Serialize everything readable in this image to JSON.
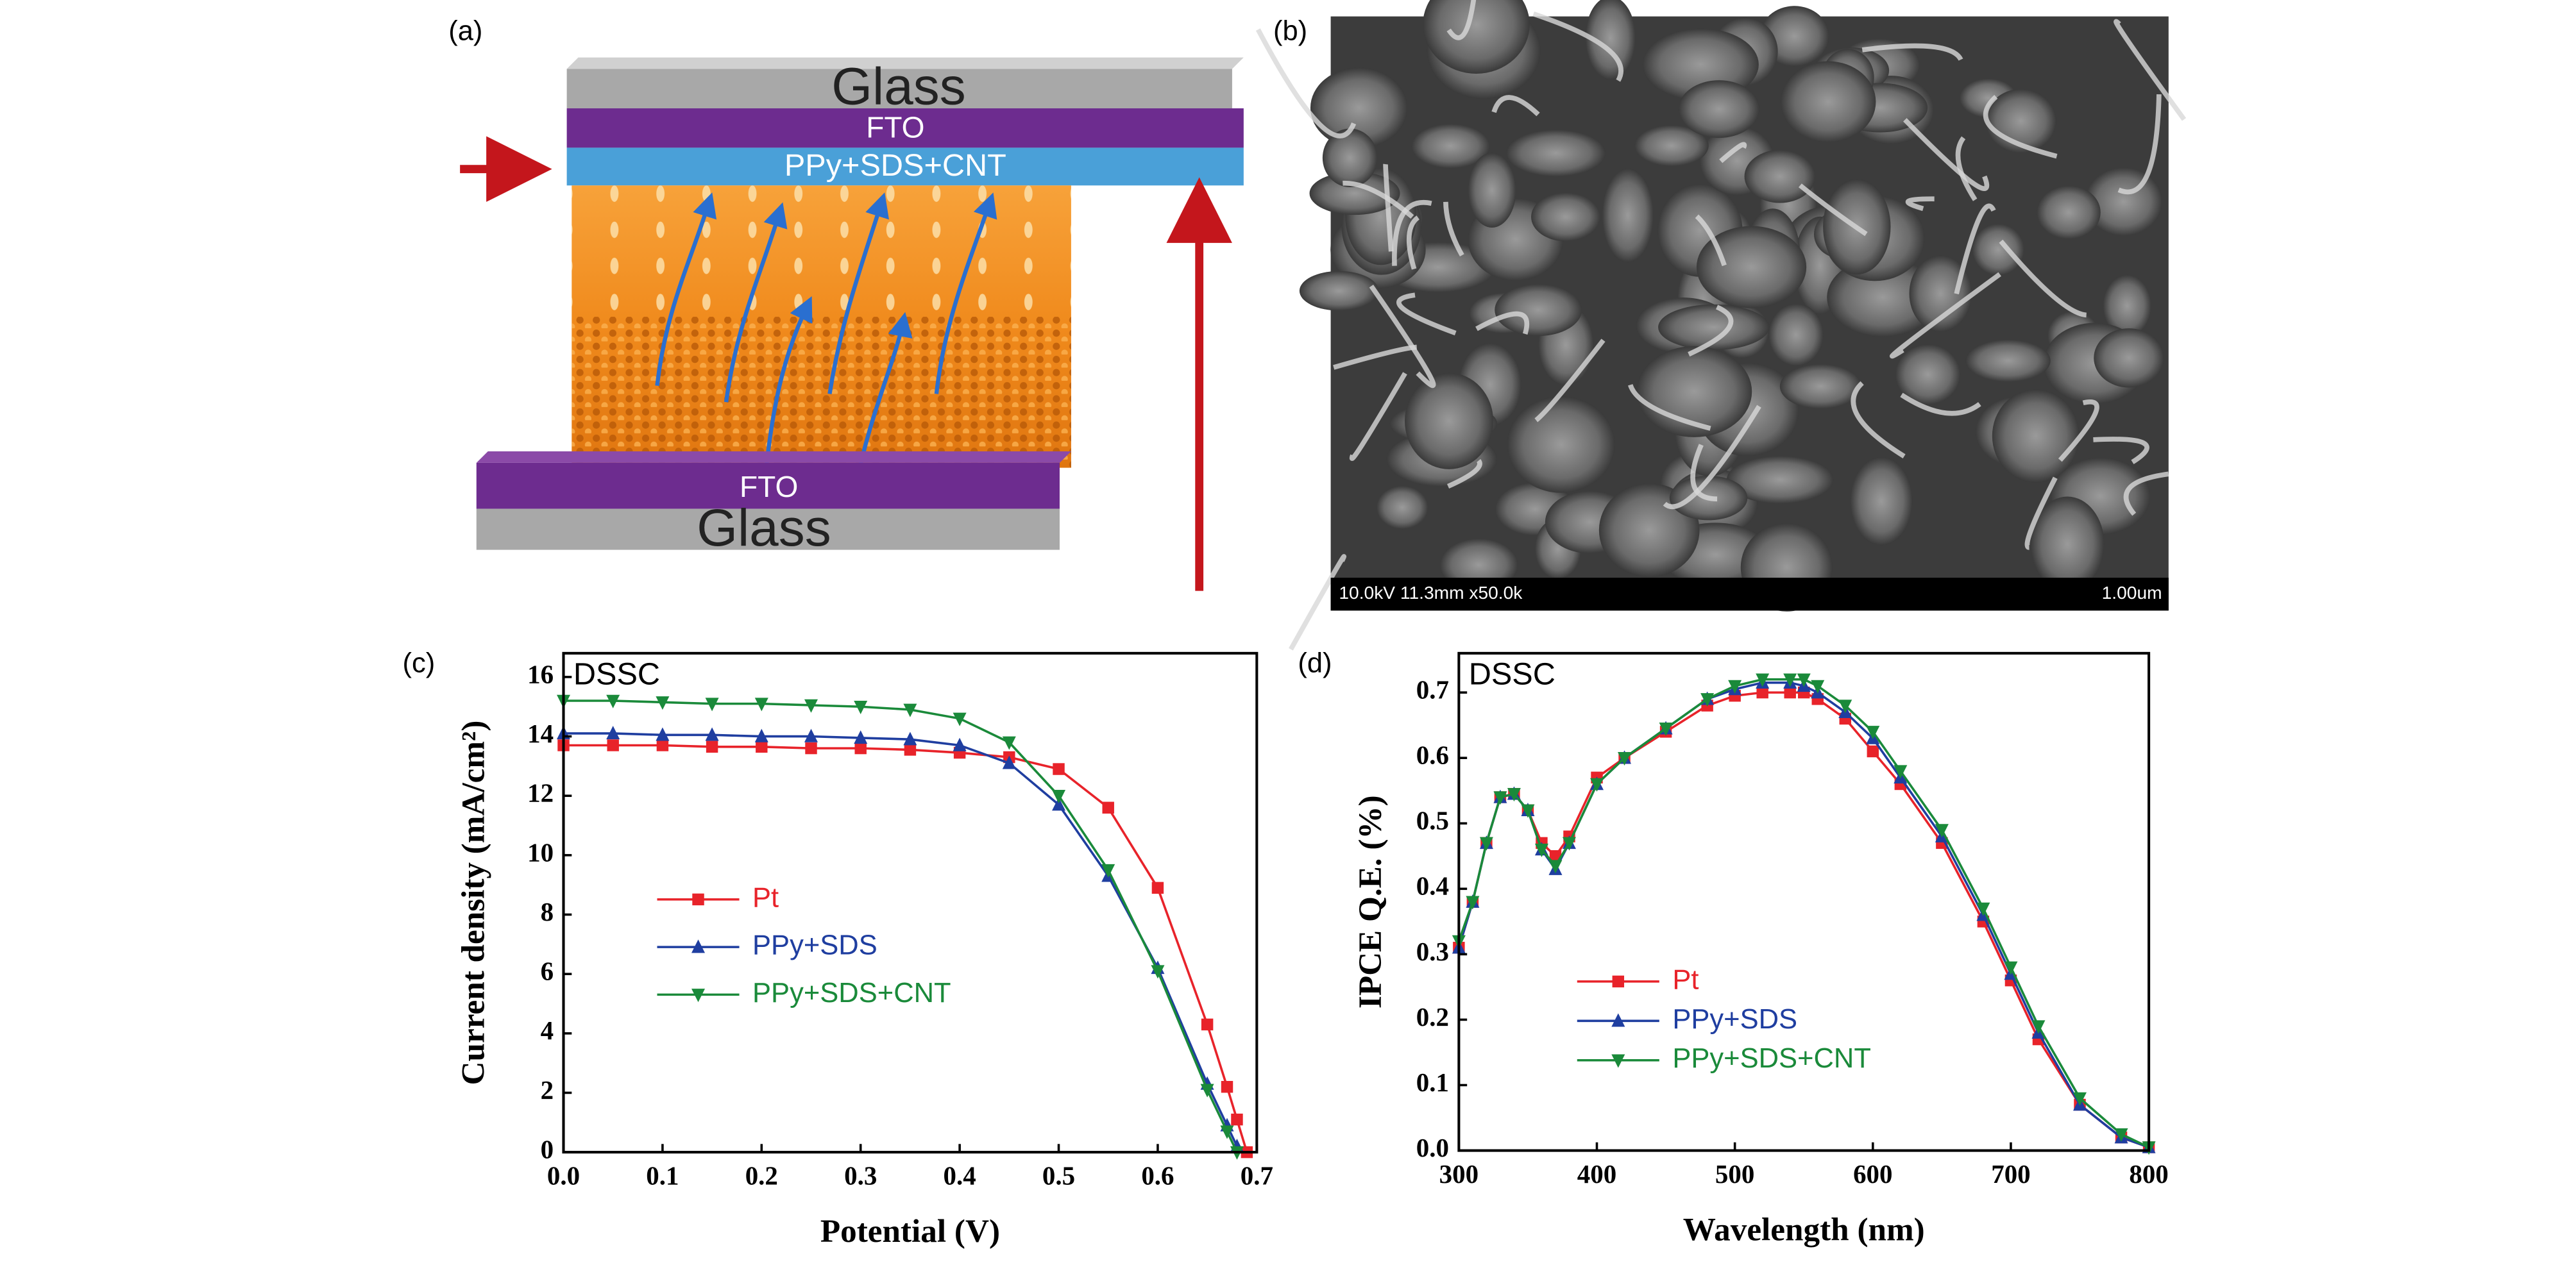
{
  "diagram": {
    "panel_label": "(a)",
    "top_glass": "Glass",
    "top_fto": "FTO",
    "counter_electrode": "PPy+SDS+CNT",
    "bottom_fto": "FTO",
    "bottom_glass": "Glass"
  },
  "micrograph": {
    "panel_label": "(b)",
    "caption": "10.0kV 11.3mm x50.0k",
    "scale_label": "1.00um"
  },
  "chart_data": [
    {
      "type": "line",
      "panel_label": "(c)",
      "annotation": "DSSC",
      "xlabel": "Potential (V)",
      "ylabel": "Current density (mA/cm²)",
      "x": [
        0,
        0.05,
        0.1,
        0.15,
        0.2,
        0.25,
        0.3,
        0.35,
        0.4,
        0.45,
        0.5,
        0.55,
        0.6,
        0.65,
        0.67,
        0.68,
        0.69
      ],
      "series": [
        {
          "name": "Pt",
          "color": "#e8232a",
          "marker": "square",
          "values": [
            13.7,
            13.7,
            13.7,
            13.65,
            13.65,
            13.6,
            13.6,
            13.55,
            13.45,
            13.3,
            12.9,
            11.6,
            8.9,
            4.3,
            2.2,
            1.1,
            0
          ]
        },
        {
          "name": "PPy+SDS",
          "color": "#1f3ea0",
          "marker": "triangle-up",
          "values": [
            14.1,
            14.1,
            14.05,
            14.05,
            14.0,
            14.0,
            13.95,
            13.9,
            13.7,
            13.1,
            11.7,
            9.3,
            6.2,
            2.3,
            0.9,
            0.2,
            null
          ]
        },
        {
          "name": "PPy+SDS+CNT",
          "color": "#1a8a3a",
          "marker": "triangle-down",
          "values": [
            15.2,
            15.2,
            15.15,
            15.1,
            15.1,
            15.05,
            15.0,
            14.9,
            14.6,
            13.8,
            12.0,
            9.5,
            6.1,
            2.1,
            0.7,
            0,
            null
          ]
        }
      ],
      "xlim": [
        0,
        0.7
      ],
      "xticks": [
        {
          "value": 0,
          "label": "0.0"
        },
        0.1,
        0.2,
        0.3,
        0.4,
        0.5,
        0.6,
        0.7
      ],
      "ylim": [
        0,
        16.8
      ],
      "yticks": [
        0,
        2,
        4,
        6,
        8,
        10,
        12,
        14,
        16
      ],
      "legend": "left",
      "grid": false
    },
    {
      "type": "line",
      "panel_label": "(d)",
      "annotation": "DSSC",
      "xlabel": "Wavelength (nm)",
      "ylabel": "IPCE Q.E. (%)",
      "x": [
        300,
        310,
        320,
        330,
        340,
        350,
        360,
        370,
        380,
        400,
        420,
        450,
        480,
        500,
        520,
        540,
        550,
        560,
        580,
        600,
        620,
        650,
        680,
        700,
        720,
        750,
        780,
        800
      ],
      "series": [
        {
          "name": "Pt",
          "color": "#e8232a",
          "marker": "square",
          "values": [
            0.31,
            0.38,
            0.47,
            0.54,
            0.545,
            0.52,
            0.47,
            0.45,
            0.48,
            0.57,
            0.6,
            0.64,
            0.68,
            0.695,
            0.7,
            0.7,
            0.7,
            0.69,
            0.66,
            0.61,
            0.56,
            0.47,
            0.35,
            0.26,
            0.17,
            0.07,
            0.02,
            0.005
          ]
        },
        {
          "name": "PPy+SDS",
          "color": "#1f3ea0",
          "marker": "triangle-up",
          "values": [
            0.31,
            0.38,
            0.47,
            0.54,
            0.545,
            0.52,
            0.46,
            0.43,
            0.47,
            0.56,
            0.6,
            0.645,
            0.69,
            0.705,
            0.715,
            0.715,
            0.71,
            0.7,
            0.67,
            0.63,
            0.57,
            0.48,
            0.36,
            0.27,
            0.18,
            0.07,
            0.02,
            0.005
          ]
        },
        {
          "name": "PPy+SDS+CNT",
          "color": "#1a8a3a",
          "marker": "triangle-down",
          "values": [
            0.32,
            0.38,
            0.47,
            0.54,
            0.545,
            0.52,
            0.46,
            0.435,
            0.47,
            0.56,
            0.6,
            0.645,
            0.69,
            0.71,
            0.72,
            0.72,
            0.72,
            0.71,
            0.68,
            0.64,
            0.58,
            0.49,
            0.37,
            0.28,
            0.19,
            0.08,
            0.025,
            0.005
          ]
        }
      ],
      "xlim": [
        300,
        800
      ],
      "xticks": [
        300,
        400,
        500,
        600,
        700,
        800
      ],
      "ylim": [
        0,
        0.76
      ],
      "yticks": [
        {
          "value": 0,
          "label": "0.0"
        },
        0.1,
        0.2,
        0.3,
        0.4,
        0.5,
        0.6,
        0.7
      ],
      "legend": "center",
      "grid": false
    }
  ]
}
